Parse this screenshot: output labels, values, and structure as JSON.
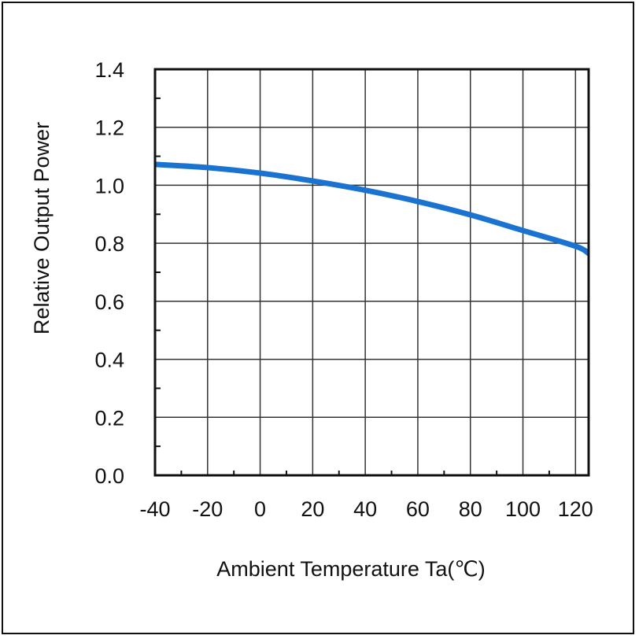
{
  "chart_data": {
    "type": "line",
    "title": "",
    "xlabel": "Ambient Temperature Ta(℃)",
    "ylabel": "Relative Output Power",
    "xlim": [
      -40,
      125
    ],
    "ylim": [
      0,
      1.4
    ],
    "xticks": [
      -40,
      -20,
      0,
      20,
      40,
      60,
      80,
      100,
      120
    ],
    "xtick_labels": [
      "-40",
      "-20",
      "0",
      "20",
      "40",
      "60",
      "80",
      "100",
      "120"
    ],
    "yticks": [
      0,
      0.2,
      0.4,
      0.6,
      0.8,
      1.0,
      1.2,
      1.4
    ],
    "ytick_labels": [
      "0.0",
      "0.2",
      "0.4",
      "0.6",
      "0.8",
      "1.0",
      "1.2",
      "1.4"
    ],
    "grid": true,
    "series": [
      {
        "name": "Relative Output Power",
        "color": "#1a73d0",
        "x": [
          -40,
          -20,
          0,
          20,
          40,
          60,
          80,
          100,
          120,
          125
        ],
        "y": [
          1.072,
          1.061,
          1.042,
          1.015,
          0.983,
          0.944,
          0.898,
          0.844,
          0.79,
          0.765
        ]
      }
    ]
  }
}
